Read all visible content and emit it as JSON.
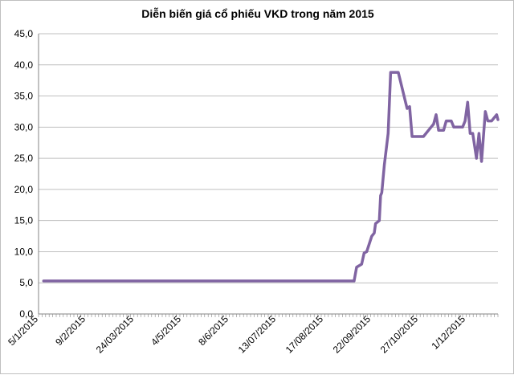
{
  "chart_data": {
    "type": "line",
    "title": "Diễn biến giá cổ phiếu VKD trong năm 2015",
    "xlabel": "",
    "ylabel": "",
    "ylim": [
      0,
      45
    ],
    "y_ticks": [
      "0,0",
      "5,0",
      "10,0",
      "15,0",
      "20,0",
      "25,0",
      "30,0",
      "35,0",
      "40,0",
      "45,0"
    ],
    "x_ticks": [
      "5/1/2015",
      "9/2/2015",
      "24/03/2015",
      "4/5/2015",
      "8/6/2015",
      "13/07/2015",
      "17/08/2015",
      "22/09/2015",
      "27/10/2015",
      "1/12/2015"
    ],
    "grid": true,
    "line_color": "#8064a2",
    "series": [
      {
        "x": [
          "5/1/2015",
          "9/2/2015",
          "24/03/2015",
          "4/5/2015",
          "8/6/2015",
          "13/07/2015",
          "17/08/2015",
          "8/9/2015",
          "10/9/2015",
          "14/9/2015",
          "16/9/2015",
          "18/9/2015",
          "22/09/2015",
          "24/9/2015",
          "25/9/2015",
          "28/9/2015",
          "29/9/2015",
          "30/9/2015",
          "2/10/2015",
          "5/10/2015",
          "7/10/2015",
          "9/10/2015",
          "13/10/2015",
          "20/10/2015",
          "22/10/2015",
          "24/10/2015",
          "27/10/2015",
          "29/10/2015",
          "2/11/2015",
          "6/11/2015",
          "10/11/2015",
          "12/11/2015",
          "14/11/2015",
          "18/11/2015",
          "20/11/2015",
          "24/11/2015",
          "26/11/2015",
          "28/11/2015",
          "1/12/2015",
          "3/12/2015",
          "5/12/2015",
          "7/12/2015",
          "9/12/2015",
          "11/12/2015",
          "14/12/2015",
          "16/12/2015",
          "18/12/2015",
          "21/12/2015",
          "23/12/2015",
          "26/12/2015",
          "30/12/2015",
          "31/12/2015"
        ],
        "values": [
          5.3,
          5.3,
          5.3,
          5.3,
          5.3,
          5.3,
          5.3,
          5.3,
          7.5,
          8.0,
          9.8,
          10.0,
          12.5,
          13.0,
          14.5,
          15.0,
          19.0,
          19.5,
          24.0,
          29.0,
          38.8,
          38.8,
          38.8,
          33.0,
          33.3,
          28.5,
          28.5,
          28.5,
          28.5,
          29.5,
          30.5,
          32.0,
          29.5,
          29.5,
          31.0,
          31.0,
          30.0,
          30.0,
          30.0,
          30.0,
          31.0,
          34.0,
          29.0,
          29.0,
          25.0,
          29.0,
          24.5,
          32.5,
          31.0,
          31.0,
          32.0,
          31.2
        ]
      }
    ]
  }
}
